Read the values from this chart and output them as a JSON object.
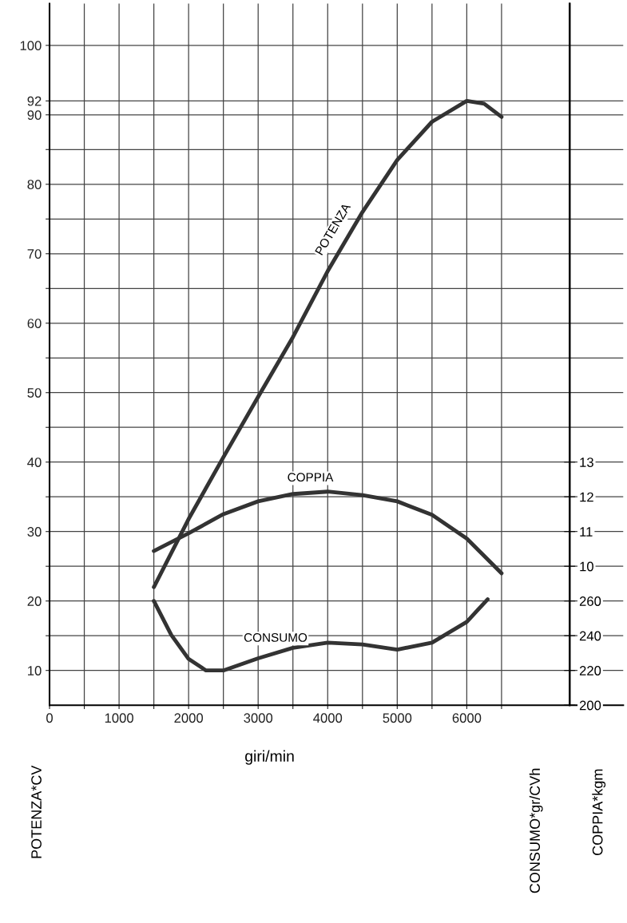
{
  "chart_data": {
    "type": "line",
    "xlabel": "giri/min",
    "ylabel": "POTENZA*CV",
    "y2label": "COPPIA*kgm",
    "y3label": "CONSUMO*gr/CVh",
    "xlim": [
      0,
      8250
    ],
    "xticks": [
      0,
      {
        "value": 500,
        "label": null
      },
      1000,
      {
        "value": 1500,
        "label": null
      },
      2000,
      {
        "value": 2500,
        "label": null
      },
      3000,
      {
        "value": 3500,
        "label": null
      },
      4000,
      {
        "value": 4500,
        "label": null
      },
      5000,
      {
        "value": 5500,
        "label": null
      },
      6000,
      {
        "value": 6500,
        "label": null
      }
    ],
    "ylim": [
      5,
      106
    ],
    "yticks": [
      10,
      {
        "value": 15,
        "label": null
      },
      20,
      {
        "value": 25,
        "label": null
      },
      30,
      {
        "value": 35,
        "label": null
      },
      40,
      {
        "value": 45,
        "label": null
      },
      50,
      {
        "value": 55,
        "label": null
      },
      60,
      {
        "value": 65,
        "label": null
      },
      70,
      {
        "value": 75,
        "label": null
      },
      80,
      {
        "value": 85,
        "label": null
      },
      90,
      92,
      100
    ],
    "y2lim": [
      6,
      26.2
    ],
    "y2ticks": [
      10,
      11,
      12,
      13
    ],
    "y3lim": [
      200,
      604
    ],
    "y3ticks": [
      200,
      220,
      240,
      260
    ],
    "grid": true,
    "legend": false,
    "marker": "none",
    "line_style": "solid",
    "series": [
      {
        "name": "POTENZA",
        "color": "#333333",
        "x": [
          1500,
          2000,
          2500,
          3000,
          3500,
          4000,
          4500,
          5000,
          5500,
          6000,
          6250,
          6500
        ],
        "values": [
          22,
          31.8,
          40.7,
          49.4,
          58,
          67.5,
          76,
          83.5,
          89,
          92,
          91.6,
          89.7
        ]
      },
      {
        "name": "COPPIA",
        "color": "#333333",
        "axis": "y2",
        "x": [
          1500,
          2000,
          2500,
          3000,
          3500,
          4000,
          4500,
          5000,
          5500,
          6000,
          6500
        ],
        "values": [
          10.44,
          10.95,
          11.5,
          11.87,
          12.08,
          12.15,
          12.05,
          11.87,
          11.48,
          10.8,
          9.8
        ]
      },
      {
        "name": "CONSUMO",
        "color": "#333333",
        "axis": "y3",
        "x": [
          1500,
          1750,
          2000,
          2250,
          2500,
          3000,
          3500,
          4000,
          4500,
          5000,
          5500,
          6000,
          6300
        ],
        "values": [
          260,
          240.5,
          226.6,
          220,
          220,
          227,
          233,
          236,
          235,
          232,
          236,
          248,
          261
        ]
      }
    ]
  }
}
